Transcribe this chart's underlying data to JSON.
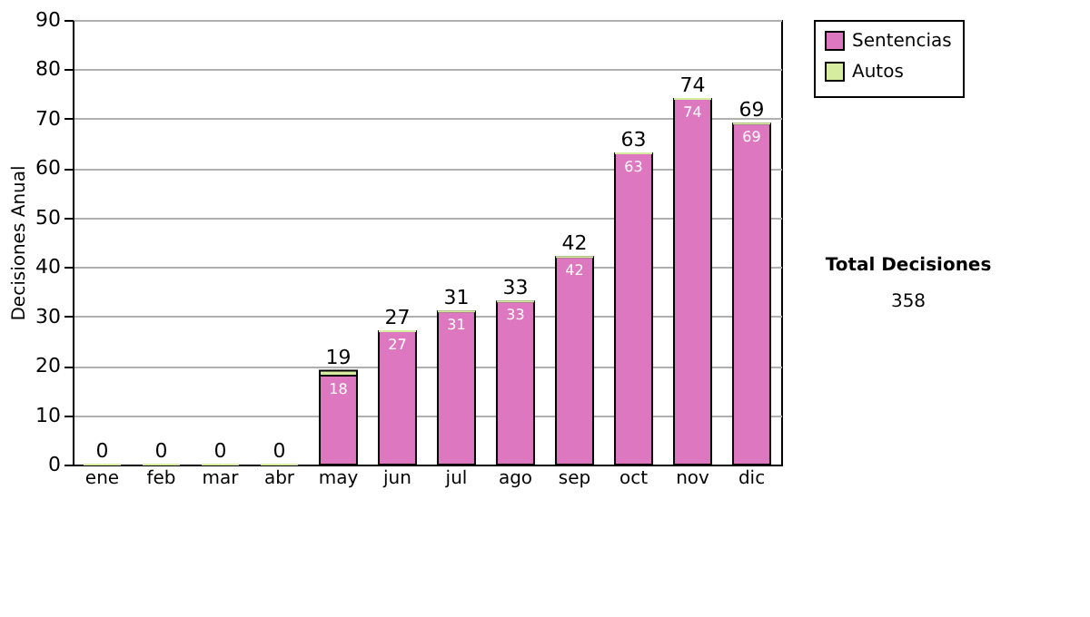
{
  "chart_data": {
    "type": "bar",
    "ylabel": "Decisiones Anual",
    "categories": [
      "ene",
      "feb",
      "mar",
      "abr",
      "may",
      "jun",
      "jul",
      "ago",
      "sep",
      "oct",
      "nov",
      "dic"
    ],
    "stacked": true,
    "series": [
      {
        "name": "Sentencias",
        "color": "#dd77c0",
        "values": [
          0,
          0,
          0,
          0,
          18,
          27,
          31,
          33,
          42,
          63,
          74,
          69
        ],
        "value_labels": [
          null,
          null,
          null,
          null,
          "18",
          "27",
          "31",
          "33",
          "42",
          "63",
          "74",
          "69"
        ]
      },
      {
        "name": "Autos",
        "color": "#d6eca0",
        "values": [
          0,
          0,
          0,
          0,
          1,
          0,
          0,
          0,
          0,
          0,
          0,
          0
        ]
      }
    ],
    "totals": [
      "0",
      "0",
      "0",
      "0",
      "19",
      "27",
      "31",
      "33",
      "42",
      "63",
      "74",
      "69"
    ],
    "ylim": [
      0,
      90
    ],
    "yticks": [
      0,
      10,
      20,
      30,
      40,
      50,
      60,
      70,
      80,
      90
    ],
    "grid": "y",
    "legend": "right",
    "annotations": [
      "Total Decisiones",
      "358"
    ]
  }
}
